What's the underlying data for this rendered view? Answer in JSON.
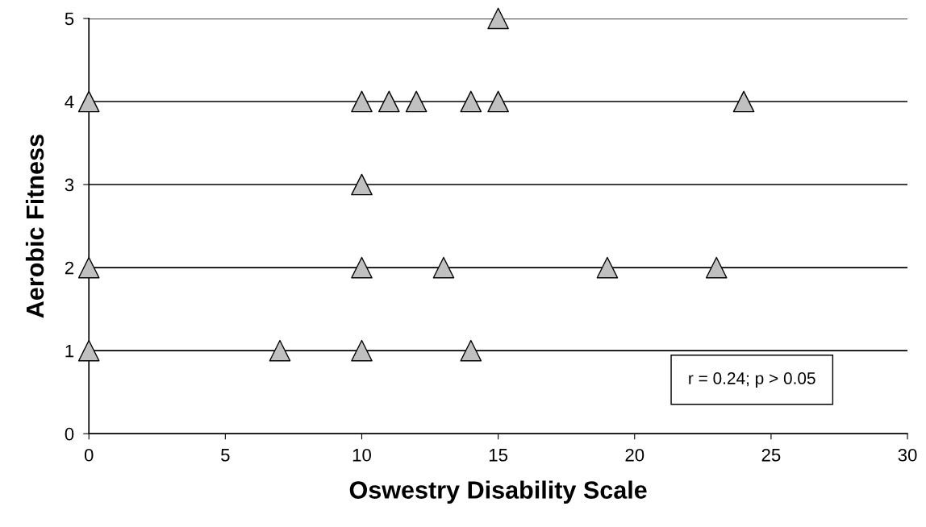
{
  "chart_data": {
    "type": "scatter",
    "xlabel": "Oswestry Disability Scale",
    "ylabel": "Aerobic Fitness",
    "x": [
      15,
      0,
      10,
      11,
      12,
      14,
      15,
      24,
      10,
      0,
      10,
      13,
      19,
      23,
      0,
      7,
      10,
      14
    ],
    "series": [
      {
        "color": "#c0c0c0",
        "values": [
          5,
          4,
          4,
          4,
          4,
          4,
          4,
          4,
          3,
          2,
          2,
          2,
          2,
          2,
          1,
          1,
          1,
          1
        ]
      }
    ],
    "marker": "triangle",
    "grid": "y",
    "xlim": [
      0,
      30
    ],
    "xticks": [
      0,
      5,
      10,
      15,
      20,
      25,
      30
    ],
    "ylim": [
      0,
      5
    ],
    "yticks": [
      0,
      1,
      2,
      3,
      4,
      5
    ],
    "annotations": [
      "r = 0.24; p > 0.05"
    ]
  }
}
